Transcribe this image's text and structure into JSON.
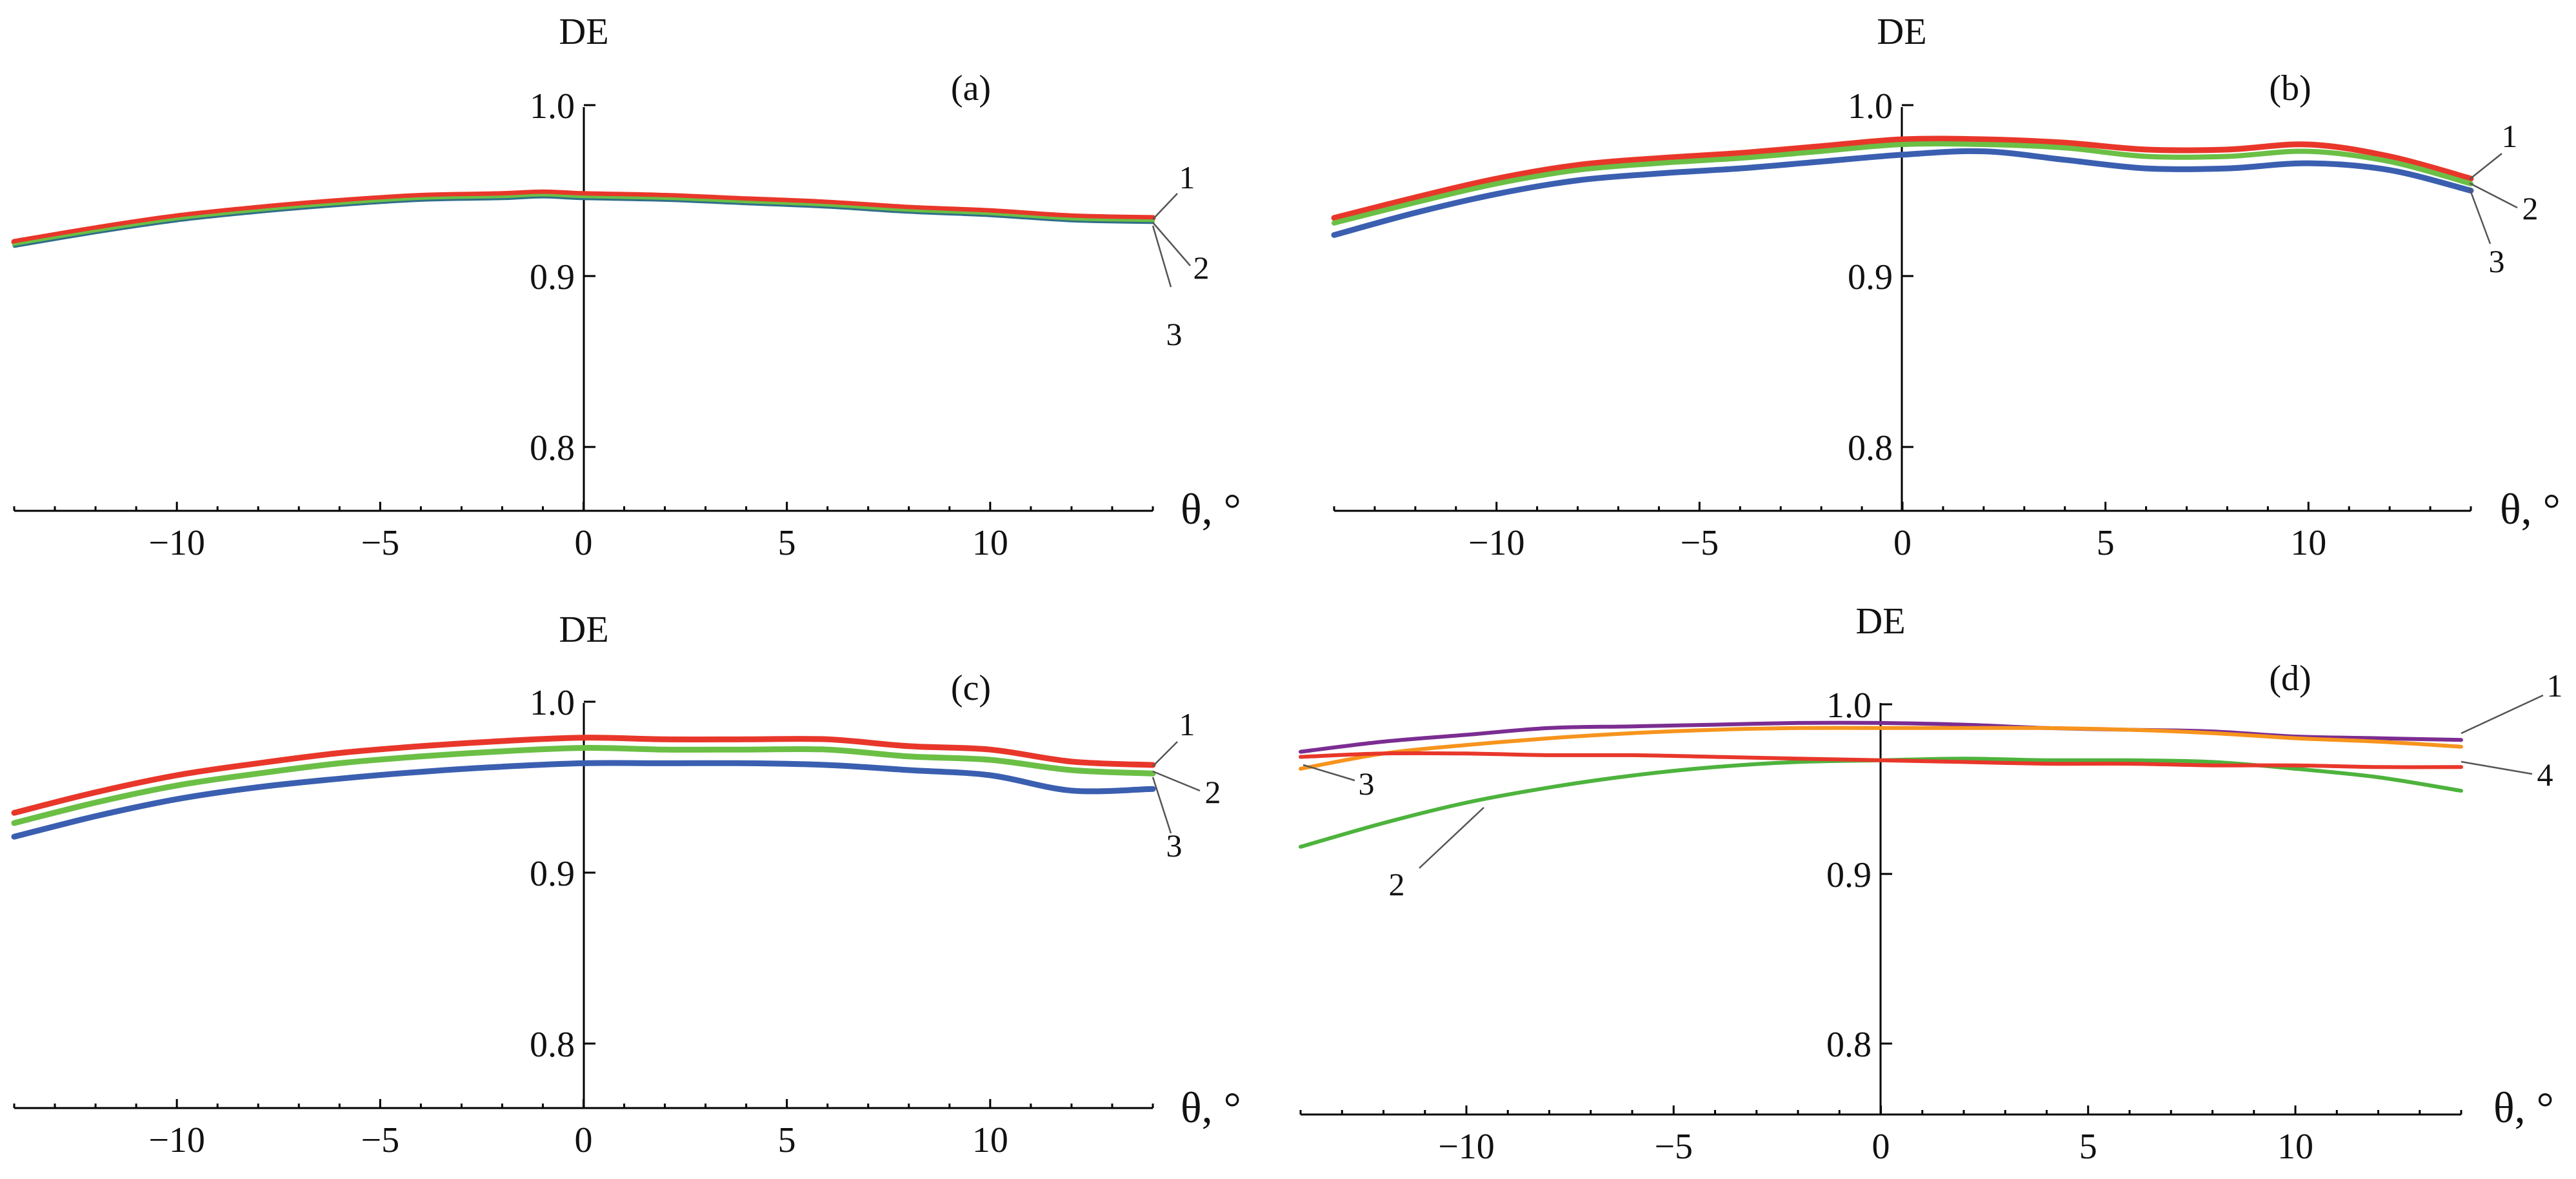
{
  "chart_data": [
    {
      "type": "line",
      "panel_label": "(a)",
      "ylabel": "DE",
      "xlabel": "θ, °",
      "xlim": [
        -14,
        14
      ],
      "ylim": [
        0.76,
        1.0
      ],
      "x_ticks": [
        -10,
        -5,
        0,
        5,
        10
      ],
      "x_tick_labels": [
        "−10",
        "−5",
        "0",
        "5",
        "10"
      ],
      "y_ticks": [
        0.8,
        0.9,
        1.0
      ],
      "y_tick_labels": [
        "0.8",
        "0.9",
        "1.0"
      ],
      "x": [
        -14,
        -12,
        -10,
        -8,
        -6,
        -4,
        -2,
        -1,
        0,
        2,
        4,
        6,
        8,
        10,
        12,
        14
      ],
      "series": [
        {
          "name": "1",
          "color": "#e8372a",
          "width": 9,
          "values": [
            0.92,
            0.928,
            0.935,
            0.94,
            0.944,
            0.947,
            0.948,
            0.949,
            0.948,
            0.947,
            0.945,
            0.943,
            0.94,
            0.938,
            0.935,
            0.934
          ]
        },
        {
          "name": "2",
          "color": "#6bbf45",
          "width": 6,
          "values": [
            0.918,
            0.926,
            0.933,
            0.938,
            0.942,
            0.945,
            0.946,
            0.947,
            0.946,
            0.945,
            0.943,
            0.941,
            0.938,
            0.936,
            0.933,
            0.932
          ]
        },
        {
          "name": "3",
          "color": "#2f6f8a",
          "width": 3,
          "values": [
            0.917,
            0.925,
            0.932,
            0.937,
            0.941,
            0.944,
            0.945,
            0.946,
            0.945,
            0.944,
            0.942,
            0.94,
            0.937,
            0.935,
            0.932,
            0.931
          ]
        }
      ]
    },
    {
      "type": "line",
      "panel_label": "(b)",
      "ylabel": "DE",
      "xlabel": "θ, °",
      "xlim": [
        -14,
        14
      ],
      "ylim": [
        0.76,
        1.0
      ],
      "x_ticks": [
        -10,
        -5,
        0,
        5,
        10
      ],
      "x_tick_labels": [
        "−10",
        "−5",
        "0",
        "5",
        "10"
      ],
      "y_ticks": [
        0.8,
        0.9,
        1.0
      ],
      "y_tick_labels": [
        "0.8",
        "0.9",
        "1.0"
      ],
      "x": [
        -14,
        -12,
        -10,
        -8,
        -6,
        -4,
        -2,
        0,
        2,
        4,
        6,
        8,
        10,
        12,
        14
      ],
      "series": [
        {
          "name": "1",
          "color": "#e8372a",
          "width": 9,
          "values": [
            0.934,
            0.946,
            0.957,
            0.965,
            0.969,
            0.972,
            0.976,
            0.98,
            0.98,
            0.978,
            0.974,
            0.974,
            0.977,
            0.97,
            0.957
          ]
        },
        {
          "name": "2",
          "color": "#6bbf45",
          "width": 8,
          "values": [
            0.931,
            0.943,
            0.954,
            0.962,
            0.966,
            0.969,
            0.973,
            0.977,
            0.977,
            0.975,
            0.97,
            0.97,
            0.973,
            0.967,
            0.954
          ]
        },
        {
          "name": "3",
          "color": "#3b5fb0",
          "width": 9,
          "values": [
            0.924,
            0.937,
            0.948,
            0.956,
            0.96,
            0.963,
            0.967,
            0.971,
            0.973,
            0.968,
            0.963,
            0.963,
            0.966,
            0.962,
            0.95
          ]
        }
      ]
    },
    {
      "type": "line",
      "panel_label": "(c)",
      "ylabel": "DE",
      "xlabel": "θ, °",
      "xlim": [
        -14,
        14
      ],
      "ylim": [
        0.76,
        1.0
      ],
      "x_ticks": [
        -10,
        -5,
        0,
        5,
        10
      ],
      "x_tick_labels": [
        "−10",
        "−5",
        "0",
        "5",
        "10"
      ],
      "y_ticks": [
        0.8,
        0.9,
        1.0
      ],
      "y_tick_labels": [
        "0.8",
        "0.9",
        "1.0"
      ],
      "x": [
        -14,
        -12,
        -10,
        -8,
        -6,
        -4,
        -2,
        0,
        2,
        4,
        6,
        8,
        10,
        12,
        14
      ],
      "series": [
        {
          "name": "1",
          "color": "#e8372a",
          "width": 9,
          "values": [
            0.935,
            0.947,
            0.957,
            0.964,
            0.97,
            0.974,
            0.977,
            0.979,
            0.978,
            0.978,
            0.978,
            0.974,
            0.972,
            0.965,
            0.963
          ]
        },
        {
          "name": "2",
          "color": "#6bbf45",
          "width": 9,
          "values": [
            0.929,
            0.941,
            0.951,
            0.958,
            0.964,
            0.968,
            0.971,
            0.973,
            0.972,
            0.972,
            0.972,
            0.968,
            0.966,
            0.96,
            0.958
          ]
        },
        {
          "name": "3",
          "color": "#3b5fb0",
          "width": 9,
          "values": [
            0.921,
            0.933,
            0.943,
            0.95,
            0.955,
            0.959,
            0.962,
            0.964,
            0.964,
            0.964,
            0.963,
            0.96,
            0.957,
            0.948,
            0.949
          ]
        }
      ]
    },
    {
      "type": "line",
      "panel_label": "(d)",
      "ylabel": "DE",
      "xlabel": "θ, °",
      "xlim": [
        -14,
        14
      ],
      "ylim": [
        0.76,
        1.0
      ],
      "x_ticks": [
        -10,
        -5,
        0,
        5,
        10
      ],
      "x_tick_labels": [
        "−10",
        "−5",
        "0",
        "5",
        "10"
      ],
      "y_ticks": [
        0.8,
        0.9,
        1.0
      ],
      "y_tick_labels": [
        "0.8",
        "0.9",
        "1.0"
      ],
      "x": [
        -14,
        -12,
        -10,
        -8,
        -6,
        -4,
        -2,
        0,
        2,
        4,
        6,
        8,
        10,
        12,
        14
      ],
      "series": [
        {
          "name": "1",
          "color": "#7b2d91",
          "width": 6,
          "values": [
            0.972,
            0.978,
            0.982,
            0.986,
            0.987,
            0.988,
            0.989,
            0.989,
            0.988,
            0.986,
            0.985,
            0.984,
            0.981,
            0.98,
            0.979
          ]
        },
        {
          "name": "2",
          "color": "#4db33d",
          "width": 6,
          "values": [
            0.916,
            0.93,
            0.942,
            0.951,
            0.958,
            0.963,
            0.966,
            0.967,
            0.968,
            0.967,
            0.967,
            0.966,
            0.962,
            0.957,
            0.949
          ]
        },
        {
          "name": "3",
          "color": "#f7941d",
          "width": 6,
          "values": [
            0.962,
            0.971,
            0.976,
            0.98,
            0.983,
            0.985,
            0.986,
            0.986,
            0.986,
            0.986,
            0.985,
            0.983,
            0.98,
            0.978,
            0.975
          ]
        },
        {
          "name": "4",
          "color": "#e8372a",
          "width": 6,
          "values": [
            0.969,
            0.971,
            0.971,
            0.97,
            0.97,
            0.969,
            0.968,
            0.967,
            0.966,
            0.965,
            0.965,
            0.964,
            0.964,
            0.963,
            0.963
          ]
        }
      ]
    }
  ]
}
